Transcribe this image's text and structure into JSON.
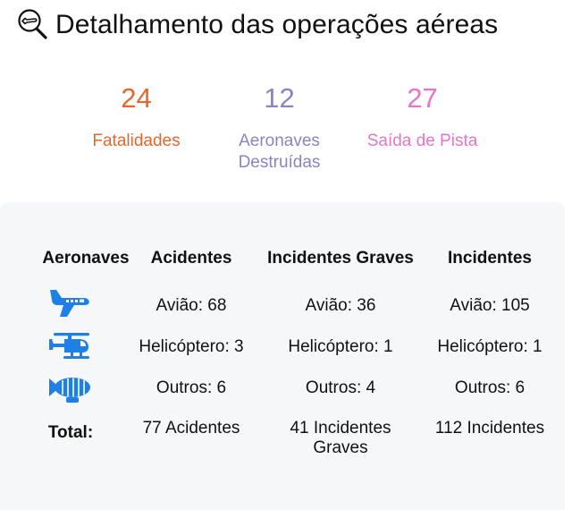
{
  "header": {
    "title": "Detalhamento das operações aéreas",
    "icon": "plane-search-icon"
  },
  "stats": [
    {
      "value": "24",
      "label": "Fatalidades",
      "color": "#e8662a"
    },
    {
      "value": "12",
      "label": "Aeronaves Destruídas",
      "color": "#8a84c4"
    },
    {
      "value": "27",
      "label": "Saída de Pista",
      "color": "#e874c9"
    }
  ],
  "table": {
    "headers": [
      "Aeronaves",
      "Acidentes",
      "Incidentes Graves",
      "Incidentes"
    ],
    "rows": [
      {
        "icon": "airplane-icon",
        "acidentes": "Avião: 68",
        "incidentes_graves": "Avião: 36",
        "incidentes": "Avião: 105"
      },
      {
        "icon": "helicopter-icon",
        "acidentes": "Helicóptero: 3",
        "incidentes_graves": "Helicóptero: 1",
        "incidentes": "Helicóptero: 1"
      },
      {
        "icon": "blimp-icon",
        "acidentes": "Outros: 6",
        "incidentes_graves": "Outros: 4",
        "incidentes": "Outros: 6"
      }
    ],
    "total": {
      "label": "Total:",
      "acidentes": "77 Acidentes",
      "incidentes_graves": "41 Incidentes Graves",
      "incidentes": "112 Incidentes"
    },
    "icon_color": "#1e7fe6"
  }
}
